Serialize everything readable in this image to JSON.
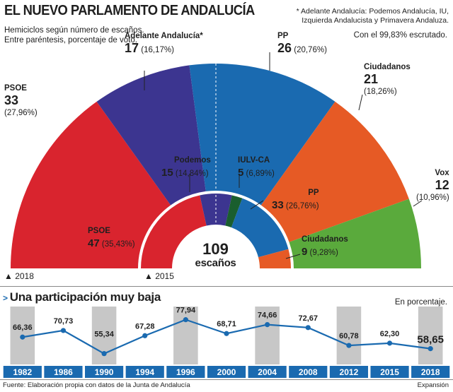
{
  "header": {
    "title": "EL NUEVO PARLAMENTO DE ANDALUCÍA",
    "note_line1": "* Adelante Andalucía: Podemos Andalucía, IU,",
    "note_line2": "Izquierda Andalucista y Primavera Andaluza.",
    "subtitle": "Hemiciclos según número de escaños. Entre paréntesis, porcentaje de voto.",
    "scrutiny": "Con el 99,83% escrutado."
  },
  "colors": {
    "psoe": "#d9242e",
    "adelante": "#3c3590",
    "podemos": "#3c3590",
    "iulv": "#1a5e2e",
    "pp": "#1a6ab0",
    "ciudadanos": "#e65a25",
    "vox": "#5aaa3c",
    "year_band": "#c7c7c7",
    "line": "#1a6ab0"
  },
  "chart_data": [
    {
      "type": "pie",
      "title": "",
      "year_label": "▲ 2018",
      "parties": [
        {
          "name": "PSOE",
          "seats": 33,
          "pct": "(27,96%)"
        },
        {
          "name": "Adelante Andalucía*",
          "seats": 17,
          "pct": "(16,17%)"
        },
        {
          "name": "PP",
          "seats": 26,
          "pct": "(20,76%)"
        },
        {
          "name": "Ciudadanos",
          "seats": 21,
          "pct": "(18,26%)"
        },
        {
          "name": "Vox",
          "seats": 12,
          "pct": "(10,96%)"
        }
      ]
    },
    {
      "type": "pie",
      "title": "",
      "year_label": "▲ 2015",
      "total_seats": "109",
      "total_label": "escaños",
      "parties": [
        {
          "name": "PSOE",
          "seats": 47,
          "pct": "(35,43%)"
        },
        {
          "name": "Podemos",
          "seats": 15,
          "pct": "(14,84%)"
        },
        {
          "name": "IULV-CA",
          "seats": 5,
          "pct": "(6,89%)"
        },
        {
          "name": "PP",
          "seats": 33,
          "pct": "(26,76%)"
        },
        {
          "name": "Ciudadanos",
          "seats": 9,
          "pct": "(9,28%)"
        }
      ]
    },
    {
      "type": "line",
      "title": "Una participación muy baja",
      "units": "En porcentaje.",
      "categories": [
        "1982",
        "1986",
        "1990",
        "1994",
        "1996",
        "2000",
        "2004",
        "2008",
        "2012",
        "2015",
        "2018"
      ],
      "values": [
        66.36,
        70.73,
        55.34,
        67.28,
        77.94,
        68.71,
        74.66,
        72.67,
        60.78,
        62.3,
        58.65
      ],
      "value_labels": [
        "66,36",
        "70,73",
        "55,34",
        "67,28",
        "77,94",
        "68,71",
        "74,66",
        "72,67",
        "60,78",
        "62,30",
        "58,65"
      ],
      "ylim": [
        50,
        82
      ]
    }
  ],
  "footer": {
    "source": "Fuente: Elaboración propia con datos de la Junta de Andalucía",
    "brand": "Expansión"
  }
}
